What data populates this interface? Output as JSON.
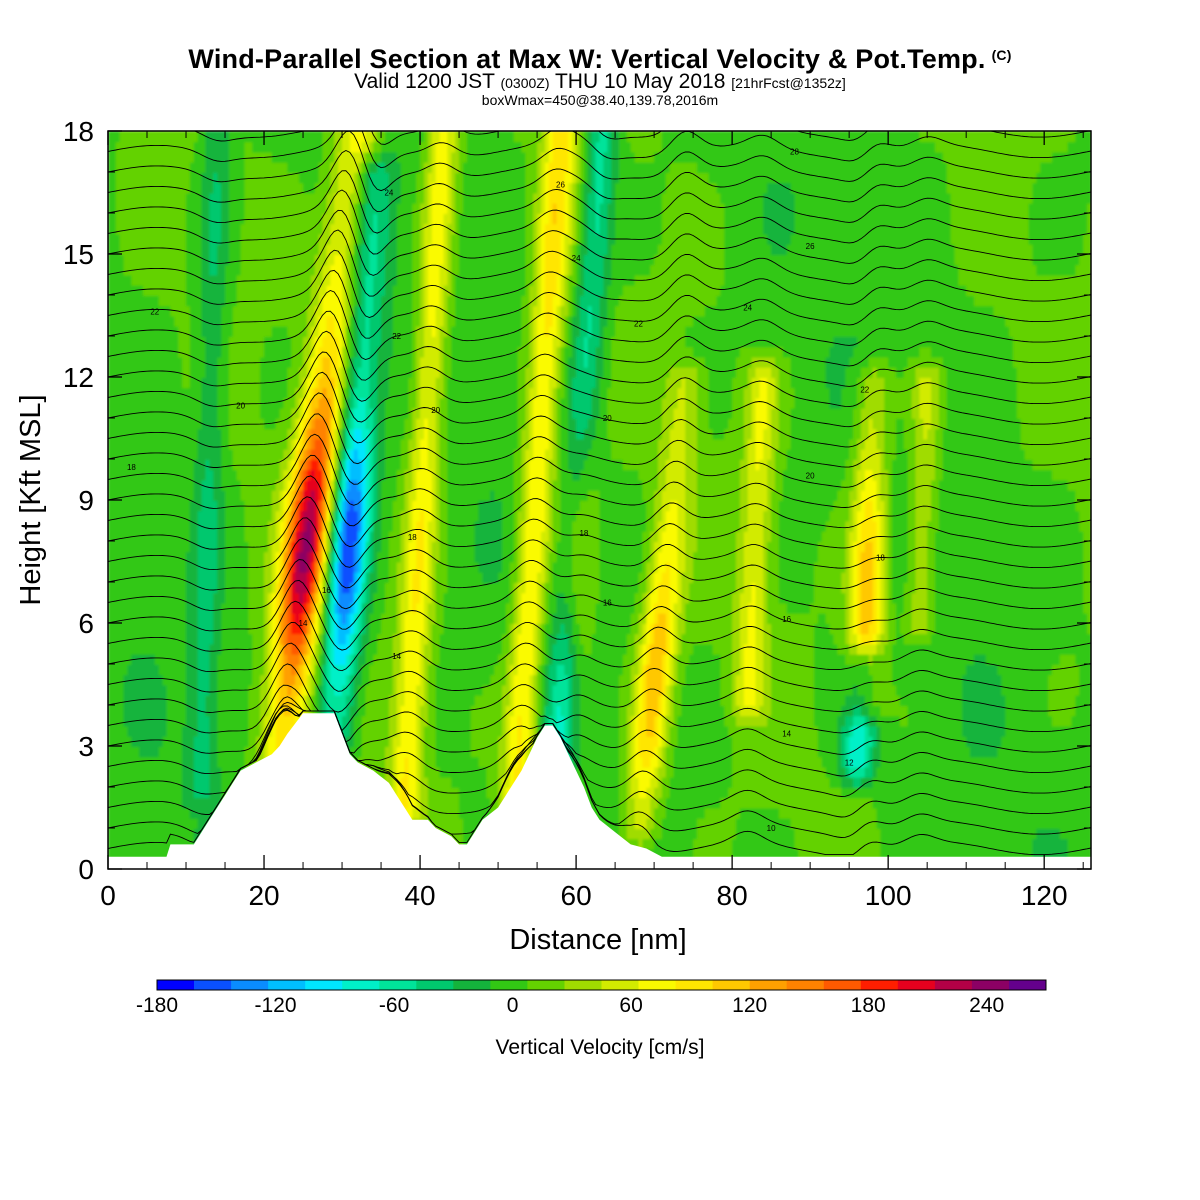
{
  "title": {
    "main": "Wind-Parallel Section at Max W: Vertical Velocity & Pot.Temp.",
    "main_mark": "(C)",
    "valid_a": "Valid 1200 JST ",
    "valid_b": "(0300Z)",
    "valid_c": " THU 10 May 2018 ",
    "valid_d": "[21hrFcst@1352z]",
    "line3": "boxWmax=450@38.40,139.78,2016m"
  },
  "chart_data": {
    "type": "heatmap",
    "xlabel": "Distance [nm]",
    "ylabel": "Height [Kft MSL]",
    "xlim": [
      0,
      126
    ],
    "ylim": [
      0,
      18
    ],
    "x_ticks": [
      0,
      20,
      40,
      60,
      80,
      100,
      120
    ],
    "y_ticks": [
      0,
      3,
      6,
      9,
      12,
      15,
      18
    ],
    "colorbar": {
      "label": "Vertical Velocity [cm/s]",
      "tick_labels": [
        -180,
        -120,
        -60,
        0,
        60,
        120,
        180,
        240
      ],
      "levels_min": -180,
      "levels_max": 270,
      "level_step": 20,
      "colors": [
        "#0000ff",
        "#0a50ff",
        "#0a8cff",
        "#00beff",
        "#00e6ff",
        "#00f0c8",
        "#00e39a",
        "#00c86e",
        "#14b43c",
        "#32c814",
        "#64d200",
        "#a0dc00",
        "#d2eb00",
        "#fafa00",
        "#ffe600",
        "#ffc800",
        "#ffa000",
        "#ff8200",
        "#ff5a00",
        "#ff1e00",
        "#e6001e",
        "#b40046",
        "#8c0064",
        "#64008c"
      ]
    },
    "updraft_bands": [
      {
        "x": 22,
        "x_top": 32,
        "ybot": 2.5,
        "ytop": 18,
        "peak": 240
      },
      {
        "x": 38,
        "x_top": 43,
        "ybot": 1.5,
        "ytop": 18,
        "peak": 80
      },
      {
        "x": 52,
        "x_top": 58,
        "ybot": 0.8,
        "ytop": 18,
        "peak": 90
      },
      {
        "x": 59,
        "x_top": 62,
        "ybot": 2.0,
        "ytop": 18,
        "peak": 110
      },
      {
        "x": 68,
        "x_top": 74,
        "ybot": 0.8,
        "ytop": 12,
        "peak": 120
      },
      {
        "x": 82,
        "x_top": 84,
        "ybot": 4.0,
        "ytop": 12,
        "peak": 60
      },
      {
        "x": 97,
        "x_top": 98,
        "ybot": 4.0,
        "ytop": 12,
        "peak": 120
      },
      {
        "x": 104,
        "x_top": 105,
        "ybot": 6.0,
        "ytop": 12,
        "peak": 50
      }
    ],
    "downdraft_bands": [
      {
        "x": 29,
        "x_top": 34,
        "ybot": 3.0,
        "ytop": 17,
        "peak": -180
      },
      {
        "x": 58,
        "x_top": 63,
        "ybot": 2.5,
        "ytop": 18,
        "peak": -100
      },
      {
        "x": 96,
        "x_top": 97,
        "ybot": 2.5,
        "ytop": 5,
        "peak": -90
      },
      {
        "x": 12,
        "x_top": 14,
        "ybot": 2.0,
        "ytop": 18,
        "peak": -40
      }
    ],
    "terrain": {
      "x": [
        0,
        7.5,
        8,
        11,
        12,
        13,
        14,
        15,
        16,
        17,
        19,
        21,
        22,
        23,
        25,
        29,
        30,
        31,
        32,
        34,
        36,
        37,
        38,
        39,
        41,
        42,
        44,
        45,
        46,
        47,
        48,
        50,
        51,
        52,
        53,
        54,
        55,
        56,
        57,
        58,
        59,
        60,
        61,
        62,
        63,
        65,
        67,
        69,
        71,
        72,
        73,
        126
      ],
      "y": [
        0.3,
        0.3,
        0.6,
        0.6,
        0.9,
        1.2,
        1.5,
        1.8,
        2.1,
        2.4,
        2.6,
        2.8,
        3.0,
        3.3,
        3.8,
        3.8,
        3.3,
        2.8,
        2.6,
        2.4,
        2.1,
        1.8,
        1.5,
        1.2,
        1.2,
        1.0,
        0.8,
        0.6,
        0.6,
        0.9,
        1.2,
        1.5,
        1.8,
        2.1,
        2.4,
        2.8,
        3.2,
        3.5,
        3.5,
        3.2,
        2.8,
        2.4,
        2.0,
        1.5,
        1.2,
        0.9,
        0.6,
        0.5,
        0.3,
        0.3,
        0.3,
        0.3
      ]
    },
    "theta_contours": {
      "baselines": [
        0.5,
        1.0,
        1.5,
        2.0,
        2.5,
        3.0,
        3.5,
        4.0,
        4.5,
        5.0,
        5.5,
        6.0,
        6.5,
        7.0,
        7.5,
        8.0,
        8.5,
        9.0,
        9.5,
        10.0,
        10.5,
        11.0,
        11.5,
        12.0,
        12.5,
        13.0,
        13.5,
        14.0,
        14.5,
        15.0,
        15.5,
        16.0,
        16.5,
        17.0,
        17.5,
        18.0
      ],
      "labels": [
        {
          "text": "18",
          "x": 3,
          "y": 9.8
        },
        {
          "text": "20",
          "x": 17,
          "y": 11.3
        },
        {
          "text": "22",
          "x": 6,
          "y": 13.6
        },
        {
          "text": "14",
          "x": 25,
          "y": 6.0
        },
        {
          "text": "16",
          "x": 28,
          "y": 6.8
        },
        {
          "text": "14",
          "x": 37,
          "y": 5.2
        },
        {
          "text": "18",
          "x": 39,
          "y": 8.1
        },
        {
          "text": "20",
          "x": 42,
          "y": 11.2
        },
        {
          "text": "22",
          "x": 37,
          "y": 13.0
        },
        {
          "text": "24",
          "x": 36,
          "y": 16.5
        },
        {
          "text": "18",
          "x": 61,
          "y": 8.2
        },
        {
          "text": "16",
          "x": 64,
          "y": 6.5
        },
        {
          "text": "20",
          "x": 64,
          "y": 11.0
        },
        {
          "text": "22",
          "x": 68,
          "y": 13.3
        },
        {
          "text": "24",
          "x": 60,
          "y": 14.9
        },
        {
          "text": "26",
          "x": 58,
          "y": 16.7
        },
        {
          "text": "24",
          "x": 82,
          "y": 13.7
        },
        {
          "text": "26",
          "x": 90,
          "y": 15.2
        },
        {
          "text": "28",
          "x": 88,
          "y": 17.5
        },
        {
          "text": "22",
          "x": 97,
          "y": 11.7
        },
        {
          "text": "20",
          "x": 90,
          "y": 9.6
        },
        {
          "text": "18",
          "x": 99,
          "y": 7.6
        },
        {
          "text": "16",
          "x": 87,
          "y": 6.1
        },
        {
          "text": "14",
          "x": 87,
          "y": 3.3
        },
        {
          "text": "12",
          "x": 95,
          "y": 2.6
        },
        {
          "text": "10",
          "x": 85,
          "y": 1.0
        }
      ]
    }
  }
}
